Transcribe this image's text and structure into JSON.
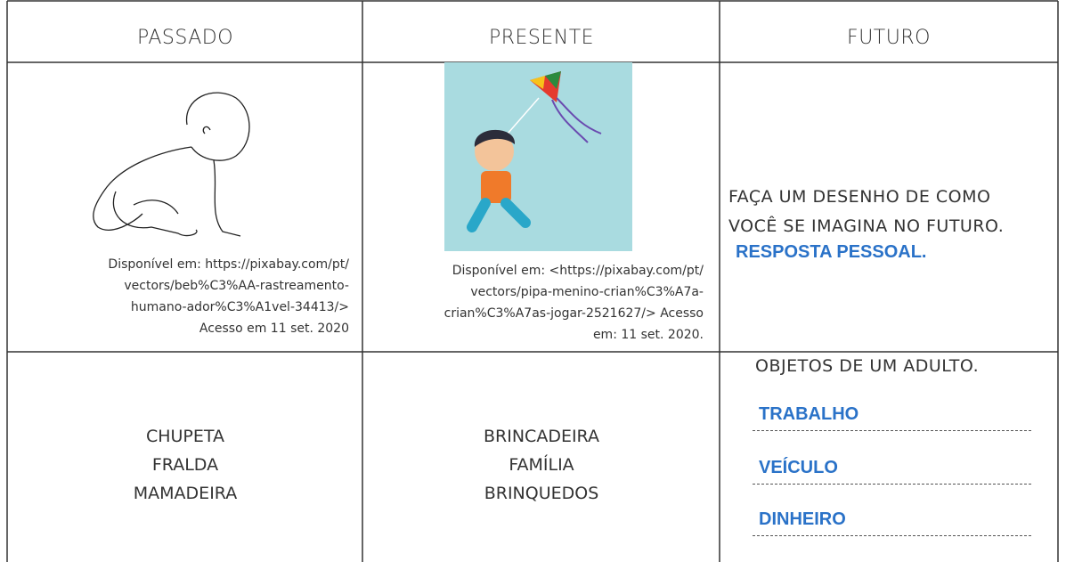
{
  "table": {
    "headers": [
      "PASSADO",
      "PRESENTE",
      "FUTURO"
    ],
    "row1": {
      "passado_caption": [
        "Disponível em: https://pixabay.com/pt/",
        "vectors/beb%C3%AA-rastreamento-",
        "humano-ador%C3%A1vel-34413/>",
        "Acesso em 11 set. 2020"
      ],
      "presente_caption": [
        "Disponível em: <https://pixabay.com/pt/",
        "vectors/pipa-menino-crian%C3%A7a-",
        "crian%C3%A7as-jogar-2521627/> Acesso",
        "em: 11 set. 2020."
      ],
      "futuro_prompt": [
        "FAÇA UM DESENHO DE COMO",
        "VOCÊ SE IMAGINA NO FUTURO."
      ],
      "futuro_answer": "RESPOSTA PESSOAL."
    },
    "row2": {
      "passado": [
        "CHUPETA",
        "FRALDA",
        "MAMADEIRA"
      ],
      "presente": [
        "BRINCADEIRA",
        "FAMÍLIA",
        "BRINQUEDOS"
      ],
      "futuro_prompt": "OBJETOS DE UM ADULTO.",
      "futuro_answers": [
        "TRABALHO",
        "VEÍCULO",
        "DINHEIRO"
      ]
    }
  }
}
